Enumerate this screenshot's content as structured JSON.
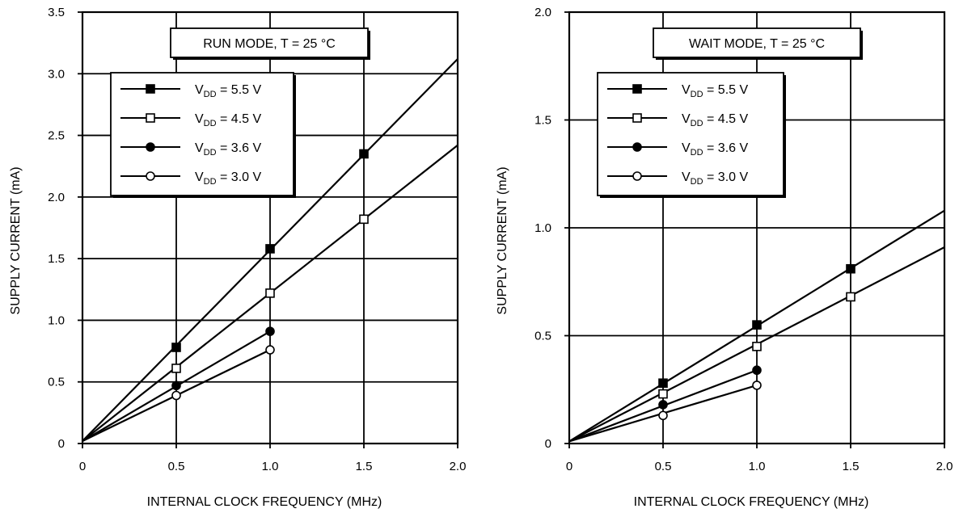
{
  "chart_data": [
    {
      "type": "line",
      "title": "RUN MODE, T = 25 °C",
      "xlabel": "INTERNAL CLOCK FREQUENCY (MHz)",
      "ylabel": "SUPPLY CURRENT (mA)",
      "xlim": [
        0,
        2.0
      ],
      "ylim": [
        0,
        3.5
      ],
      "xticks": [
        "0",
        "0.5",
        "1.0",
        "1.5",
        "2.0"
      ],
      "xtick_values": [
        0,
        0.5,
        1.0,
        1.5,
        2.0
      ],
      "yticks": [
        "0",
        "0.5",
        "1.0",
        "1.5",
        "2.0",
        "2.5",
        "3.0",
        "3.5"
      ],
      "ytick_values": [
        0,
        0.5,
        1.0,
        1.5,
        2.0,
        2.5,
        3.0,
        3.5
      ],
      "grid": true,
      "legend_position": "top-left",
      "series": [
        {
          "vdd": "5.5 V",
          "marker": "filled-square",
          "line_x": [
            0,
            2.0
          ],
          "line_y": [
            0.02,
            3.12
          ],
          "points_x": [
            0.5,
            1.0,
            1.5
          ],
          "points_y": [
            0.78,
            1.58,
            2.35
          ]
        },
        {
          "vdd": "4.5 V",
          "marker": "open-square",
          "line_x": [
            0,
            2.0
          ],
          "line_y": [
            0.02,
            2.42
          ],
          "points_x": [
            0.5,
            1.0,
            1.5
          ],
          "points_y": [
            0.61,
            1.22,
            1.82
          ]
        },
        {
          "vdd": "3.6 V",
          "marker": "filled-circle",
          "line_x": [
            0,
            1.0
          ],
          "line_y": [
            0.02,
            0.91
          ],
          "points_x": [
            0.5,
            1.0
          ],
          "points_y": [
            0.47,
            0.91
          ]
        },
        {
          "vdd": "3.0 V",
          "marker": "open-circle",
          "line_x": [
            0,
            1.0
          ],
          "line_y": [
            0.02,
            0.76
          ],
          "points_x": [
            0.5,
            1.0
          ],
          "points_y": [
            0.39,
            0.76
          ]
        }
      ]
    },
    {
      "type": "line",
      "title": "WAIT MODE, T = 25 °C",
      "xlabel": "INTERNAL CLOCK FREQUENCY (MHz)",
      "ylabel": "SUPPLY CURRENT (mA)",
      "xlim": [
        0,
        2.0
      ],
      "ylim": [
        0,
        2.0
      ],
      "xticks": [
        "0",
        "0.5",
        "1.0",
        "1.5",
        "2.0"
      ],
      "xtick_values": [
        0,
        0.5,
        1.0,
        1.5,
        2.0
      ],
      "yticks": [
        "0",
        "0.5",
        "1.0",
        "1.5",
        "2.0"
      ],
      "ytick_values": [
        0,
        0.5,
        1.0,
        1.5,
        2.0
      ],
      "grid": true,
      "legend_position": "top-left",
      "series": [
        {
          "vdd": "5.5 V",
          "marker": "filled-square",
          "line_x": [
            0,
            2.0
          ],
          "line_y": [
            0.01,
            1.08
          ],
          "points_x": [
            0.5,
            1.0,
            1.5
          ],
          "points_y": [
            0.28,
            0.55,
            0.81
          ]
        },
        {
          "vdd": "4.5 V",
          "marker": "open-square",
          "line_x": [
            0,
            2.0
          ],
          "line_y": [
            0.01,
            0.91
          ],
          "points_x": [
            0.5,
            1.0,
            1.5
          ],
          "points_y": [
            0.23,
            0.45,
            0.68
          ]
        },
        {
          "vdd": "3.6 V",
          "marker": "filled-circle",
          "line_x": [
            0,
            1.0
          ],
          "line_y": [
            0.01,
            0.34
          ],
          "points_x": [
            0.5,
            1.0
          ],
          "points_y": [
            0.18,
            0.34
          ]
        },
        {
          "vdd": "3.0 V",
          "marker": "open-circle",
          "line_x": [
            0,
            1.0
          ],
          "line_y": [
            0.01,
            0.27
          ],
          "points_x": [
            0.5,
            1.0
          ],
          "points_y": [
            0.13,
            0.27
          ]
        }
      ]
    }
  ],
  "legend_prefix": "V",
  "legend_subscript": "DD",
  "legend_equals": " = "
}
